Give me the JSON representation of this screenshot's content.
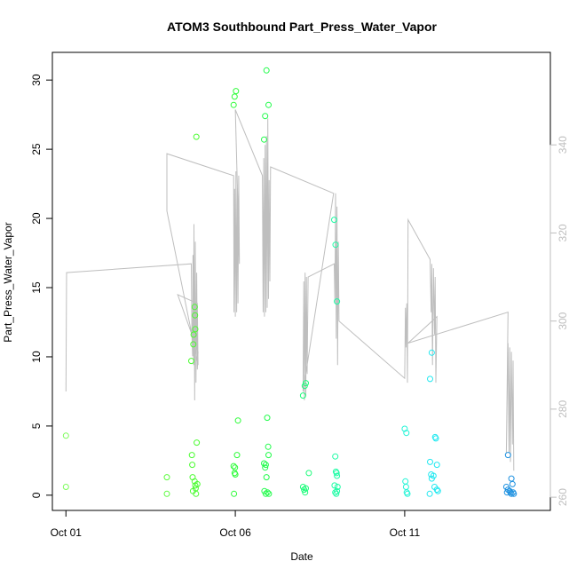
{
  "chart_data": {
    "type": "scatter",
    "title": "ATOM3 Southbound Part_Press_Water_Vapor",
    "xlabel": "Date",
    "ylabel": "Part_Press_Water_Vapor",
    "x_unit": "day of October",
    "xlim": [
      0.6,
      15.3
    ],
    "ylim": [
      -1.1,
      32.0
    ],
    "y2lim": [
      257,
      361
    ],
    "x_ticks": [
      {
        "value": 1,
        "label": "Oct 01"
      },
      {
        "value": 6,
        "label": "Oct 06"
      },
      {
        "value": 11,
        "label": "Oct 11"
      }
    ],
    "y_ticks": [
      0,
      5,
      10,
      15,
      20,
      25,
      30
    ],
    "y2_ticks": [
      260,
      280,
      300,
      320,
      340
    ],
    "grid": false,
    "legend": "none",
    "colors": {
      "line": "#bebebe",
      "axis": "#000000",
      "axis2": "#bebebe"
    },
    "points": [
      {
        "x": 1.0,
        "y": 4.3,
        "c": "#7cfc5a"
      },
      {
        "x": 1.0,
        "y": 0.6,
        "c": "#7cfc5a"
      },
      {
        "x": 3.98,
        "y": 1.3,
        "c": "#5cfc3e"
      },
      {
        "x": 3.98,
        "y": 0.1,
        "c": "#5cfc3e"
      },
      {
        "x": 4.7,
        "y": 9.7,
        "c": "#4cfc32"
      },
      {
        "x": 4.72,
        "y": 2.9,
        "c": "#4cfc32"
      },
      {
        "x": 4.73,
        "y": 2.2,
        "c": "#4cfc32"
      },
      {
        "x": 4.74,
        "y": 1.3,
        "c": "#4cfc32"
      },
      {
        "x": 4.75,
        "y": 0.3,
        "c": "#4cfc32"
      },
      {
        "x": 4.76,
        "y": 10.9,
        "c": "#4cfc32"
      },
      {
        "x": 4.77,
        "y": 11.6,
        "c": "#4cfc32"
      },
      {
        "x": 4.8,
        "y": 13.6,
        "c": "#4cfc32"
      },
      {
        "x": 4.81,
        "y": 13.0,
        "c": "#4cfc32"
      },
      {
        "x": 4.82,
        "y": 12.0,
        "c": "#4cfc32"
      },
      {
        "x": 4.8,
        "y": 1.0,
        "c": "#4cfc32"
      },
      {
        "x": 4.82,
        "y": 0.7,
        "c": "#4cfc32"
      },
      {
        "x": 4.83,
        "y": 0.5,
        "c": "#4cfc32"
      },
      {
        "x": 4.84,
        "y": 0.1,
        "c": "#4cfc32"
      },
      {
        "x": 4.85,
        "y": 25.9,
        "c": "#4cfc32"
      },
      {
        "x": 4.86,
        "y": 3.8,
        "c": "#4cfc32"
      },
      {
        "x": 4.88,
        "y": 0.8,
        "c": "#4cfc32"
      },
      {
        "x": 5.95,
        "y": 28.2,
        "c": "#2cfc38"
      },
      {
        "x": 5.98,
        "y": 28.8,
        "c": "#2cfc38"
      },
      {
        "x": 6.02,
        "y": 29.2,
        "c": "#2cfc38"
      },
      {
        "x": 5.95,
        "y": 2.1,
        "c": "#2cfc38"
      },
      {
        "x": 5.98,
        "y": 1.6,
        "c": "#2cfc38"
      },
      {
        "x": 5.99,
        "y": 2.0,
        "c": "#2cfc38"
      },
      {
        "x": 6.0,
        "y": 1.5,
        "c": "#2cfc38"
      },
      {
        "x": 6.05,
        "y": 2.9,
        "c": "#2cfc38"
      },
      {
        "x": 6.08,
        "y": 5.4,
        "c": "#2cfc38"
      },
      {
        "x": 5.96,
        "y": 0.1,
        "c": "#2cfc38"
      },
      {
        "x": 6.85,
        "y": 25.7,
        "c": "#20fc4a"
      },
      {
        "x": 6.88,
        "y": 27.4,
        "c": "#20fc4a"
      },
      {
        "x": 6.92,
        "y": 30.7,
        "c": "#20fc4a"
      },
      {
        "x": 6.98,
        "y": 28.2,
        "c": "#20fc4a"
      },
      {
        "x": 6.85,
        "y": 2.3,
        "c": "#20fc4a"
      },
      {
        "x": 6.88,
        "y": 2.0,
        "c": "#20fc4a"
      },
      {
        "x": 6.9,
        "y": 2.2,
        "c": "#20fc4a"
      },
      {
        "x": 6.92,
        "y": 1.3,
        "c": "#20fc4a"
      },
      {
        "x": 6.94,
        "y": 5.6,
        "c": "#20fc4a"
      },
      {
        "x": 6.97,
        "y": 3.5,
        "c": "#20fc4a"
      },
      {
        "x": 6.98,
        "y": 2.9,
        "c": "#20fc4a"
      },
      {
        "x": 6.86,
        "y": 0.3,
        "c": "#20fc4a"
      },
      {
        "x": 6.9,
        "y": 0.1,
        "c": "#20fc4a"
      },
      {
        "x": 6.95,
        "y": 0.2,
        "c": "#20fc4a"
      },
      {
        "x": 6.99,
        "y": 0.1,
        "c": "#20fc4a"
      },
      {
        "x": 8.0,
        "y": 7.2,
        "c": "#1cfc7a"
      },
      {
        "x": 8.05,
        "y": 7.9,
        "c": "#1cfc7a"
      },
      {
        "x": 8.08,
        "y": 8.1,
        "c": "#1cfc7a"
      },
      {
        "x": 8.0,
        "y": 0.6,
        "c": "#1cfc7a"
      },
      {
        "x": 8.03,
        "y": 0.4,
        "c": "#1cfc7a"
      },
      {
        "x": 8.06,
        "y": 0.2,
        "c": "#1cfc7a"
      },
      {
        "x": 8.08,
        "y": 0.5,
        "c": "#1cfc7a"
      },
      {
        "x": 8.17,
        "y": 1.6,
        "c": "#1cfc7a"
      },
      {
        "x": 8.92,
        "y": 19.9,
        "c": "#1cfca4"
      },
      {
        "x": 8.96,
        "y": 18.1,
        "c": "#1cfca4"
      },
      {
        "x": 9.0,
        "y": 14.0,
        "c": "#1cfca4"
      },
      {
        "x": 8.95,
        "y": 2.8,
        "c": "#1cfca4"
      },
      {
        "x": 8.97,
        "y": 1.7,
        "c": "#1cfca4"
      },
      {
        "x": 8.99,
        "y": 1.6,
        "c": "#1cfca4"
      },
      {
        "x": 8.93,
        "y": 0.7,
        "c": "#1cfca4"
      },
      {
        "x": 9.0,
        "y": 1.4,
        "c": "#1cfca4"
      },
      {
        "x": 9.02,
        "y": 0.6,
        "c": "#1cfca4"
      },
      {
        "x": 8.95,
        "y": 0.2,
        "c": "#1cfca4"
      },
      {
        "x": 8.98,
        "y": 0.1,
        "c": "#1cfca4"
      },
      {
        "x": 9.0,
        "y": 0.3,
        "c": "#1cfca4"
      },
      {
        "x": 11.0,
        "y": 4.8,
        "c": "#20f4d6"
      },
      {
        "x": 11.05,
        "y": 4.5,
        "c": "#20f4d6"
      },
      {
        "x": 11.02,
        "y": 1.0,
        "c": "#20f4d6"
      },
      {
        "x": 11.04,
        "y": 0.6,
        "c": "#20f4d6"
      },
      {
        "x": 11.06,
        "y": 0.2,
        "c": "#20f4d6"
      },
      {
        "x": 11.08,
        "y": 0.1,
        "c": "#20f4d6"
      },
      {
        "x": 11.75,
        "y": 8.4,
        "c": "#20e8f0"
      },
      {
        "x": 11.8,
        "y": 10.3,
        "c": "#20e8f0"
      },
      {
        "x": 11.75,
        "y": 2.4,
        "c": "#20e8f0"
      },
      {
        "x": 11.9,
        "y": 4.2,
        "c": "#20e8f0"
      },
      {
        "x": 11.92,
        "y": 4.1,
        "c": "#20e8f0"
      },
      {
        "x": 11.78,
        "y": 1.5,
        "c": "#20e8f0"
      },
      {
        "x": 11.8,
        "y": 1.2,
        "c": "#20e8f0"
      },
      {
        "x": 11.85,
        "y": 1.4,
        "c": "#20e8f0"
      },
      {
        "x": 11.95,
        "y": 2.2,
        "c": "#20e8f0"
      },
      {
        "x": 11.88,
        "y": 0.6,
        "c": "#20e8f0"
      },
      {
        "x": 11.95,
        "y": 0.4,
        "c": "#20e8f0"
      },
      {
        "x": 11.74,
        "y": 0.1,
        "c": "#20e8f0"
      },
      {
        "x": 11.98,
        "y": 0.3,
        "c": "#20e8f0"
      },
      {
        "x": 14.05,
        "y": 2.9,
        "c": "#1c90e0"
      },
      {
        "x": 14.15,
        "y": 1.2,
        "c": "#1c90e0"
      },
      {
        "x": 14.0,
        "y": 0.6,
        "c": "#1c90e0"
      },
      {
        "x": 14.05,
        "y": 0.4,
        "c": "#1c90e0"
      },
      {
        "x": 14.1,
        "y": 0.3,
        "c": "#1c90e0"
      },
      {
        "x": 14.12,
        "y": 0.2,
        "c": "#1c90e0"
      },
      {
        "x": 14.15,
        "y": 0.1,
        "c": "#1c90e0"
      },
      {
        "x": 14.18,
        "y": 0.8,
        "c": "#1c90e0"
      },
      {
        "x": 14.2,
        "y": 0.2,
        "c": "#1c90e0"
      },
      {
        "x": 14.02,
        "y": 0.2,
        "c": "#1c90e0"
      },
      {
        "x": 14.22,
        "y": 0.1,
        "c": "#1c90e0"
      }
    ],
    "line": [
      [
        1.0,
        284
      ],
      [
        1.02,
        311
      ],
      [
        4.7,
        313
      ],
      [
        4.72,
        297
      ],
      [
        4.74,
        292
      ],
      [
        4.75,
        315
      ],
      [
        4.77,
        290
      ],
      [
        4.78,
        322
      ],
      [
        4.8,
        282
      ],
      [
        4.82,
        318
      ],
      [
        4.84,
        286
      ],
      [
        4.86,
        311
      ],
      [
        4.88,
        289
      ],
      [
        4.9,
        293
      ],
      [
        4.3,
        306
      ],
      [
        4.88,
        304
      ],
      [
        4.9,
        290
      ],
      [
        3.98,
        325
      ],
      [
        3.98,
        338
      ],
      [
        5.95,
        333
      ],
      [
        5.96,
        302
      ],
      [
        5.98,
        330
      ],
      [
        6.0,
        301
      ],
      [
        6.02,
        334
      ],
      [
        6.04,
        302
      ],
      [
        6.06,
        331
      ],
      [
        6.08,
        304
      ],
      [
        6.1,
        333
      ],
      [
        6.12,
        313
      ],
      [
        6.0,
        348
      ],
      [
        6.8,
        333
      ],
      [
        6.82,
        302
      ],
      [
        6.84,
        337
      ],
      [
        6.86,
        301
      ],
      [
        6.88,
        340
      ],
      [
        6.9,
        302
      ],
      [
        6.92,
        342
      ],
      [
        6.94,
        303
      ],
      [
        6.96,
        346
      ],
      [
        6.98,
        305
      ],
      [
        7.0,
        332
      ],
      [
        7.02,
        309
      ],
      [
        7.04,
        335
      ],
      [
        8.9,
        329
      ],
      [
        8.0,
        284
      ],
      [
        8.02,
        309
      ],
      [
        8.04,
        282
      ],
      [
        8.06,
        311
      ],
      [
        8.08,
        283
      ],
      [
        8.1,
        310
      ],
      [
        8.12,
        288
      ],
      [
        8.15,
        310
      ],
      [
        8.92,
        313
      ],
      [
        8.94,
        304
      ],
      [
        8.96,
        329
      ],
      [
        8.98,
        296
      ],
      [
        9.0,
        326
      ],
      [
        9.02,
        290
      ],
      [
        9.04,
        318
      ],
      [
        9.06,
        300
      ],
      [
        11.0,
        287
      ],
      [
        11.02,
        303
      ],
      [
        11.04,
        294
      ],
      [
        11.06,
        304
      ],
      [
        11.08,
        286
      ],
      [
        11.1,
        323
      ],
      [
        11.75,
        314
      ],
      [
        11.78,
        302
      ],
      [
        11.8,
        313
      ],
      [
        11.82,
        290
      ],
      [
        11.85,
        312
      ],
      [
        11.88,
        297
      ],
      [
        11.9,
        310
      ],
      [
        11.92,
        286
      ],
      [
        11.95,
        301
      ],
      [
        11.1,
        295
      ],
      [
        14.05,
        302
      ],
      [
        14.0,
        270
      ],
      [
        14.05,
        295
      ],
      [
        14.08,
        270
      ],
      [
        14.1,
        294
      ],
      [
        14.12,
        268
      ],
      [
        14.15,
        293
      ],
      [
        14.18,
        272
      ],
      [
        14.2,
        291
      ],
      [
        14.22,
        266
      ]
    ]
  }
}
